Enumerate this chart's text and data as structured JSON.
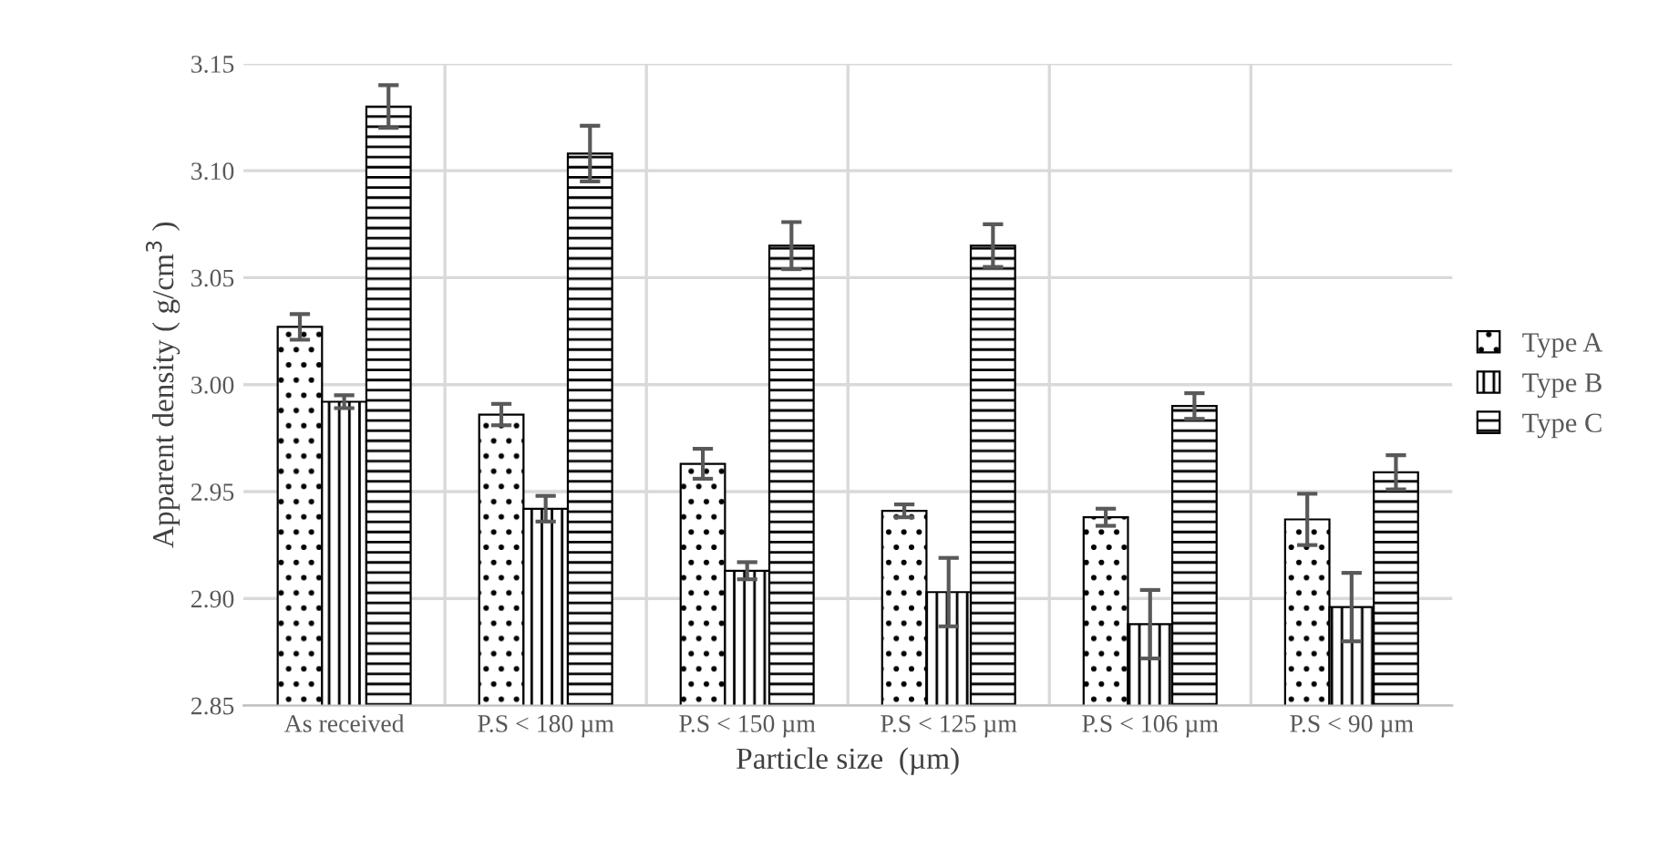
{
  "chart_data": {
    "type": "bar",
    "xlabel": "Particle size  (µm)",
    "ylabel": "Apparent density ( g/cm$^{3}$ )",
    "categories": [
      "As received",
      "P.S < 180 µm",
      "P.S < 150 µm",
      "P.S < 125 µm",
      "P.S < 106 µm",
      "P.S < 90 µm"
    ],
    "series": [
      {
        "name": "Type A",
        "color": "#000000",
        "values": [
          3.027,
          2.986,
          2.963,
          2.941,
          2.938,
          2.937
        ],
        "errors": [
          0.006,
          0.005,
          0.007,
          0.003,
          0.004,
          0.012
        ]
      },
      {
        "name": "Type B",
        "color": "#000000",
        "values": [
          2.992,
          2.942,
          2.913,
          2.903,
          2.888,
          2.896
        ],
        "errors": [
          0.003,
          0.006,
          0.004,
          0.016,
          0.016,
          0.016
        ]
      },
      {
        "name": "Type C",
        "color": "#000000",
        "values": [
          3.13,
          3.108,
          3.065,
          3.065,
          2.99,
          2.959
        ],
        "errors": [
          0.01,
          0.013,
          0.011,
          0.01,
          0.006,
          0.008
        ]
      }
    ],
    "ylim": [
      2.85,
      3.15
    ],
    "yticks": [
      {
        "value": 2.85,
        "label": "2.85"
      },
      {
        "value": 2.9,
        "label": "2.90"
      },
      {
        "value": 2.95,
        "label": "2.95"
      },
      {
        "value": 3.0,
        "label": "3.00"
      },
      {
        "value": 3.05,
        "label": "3.05"
      },
      {
        "value": 3.1,
        "label": "3.10"
      },
      {
        "value": 3.15,
        "label": "3.15"
      }
    ],
    "grid": true,
    "legend": "right"
  }
}
